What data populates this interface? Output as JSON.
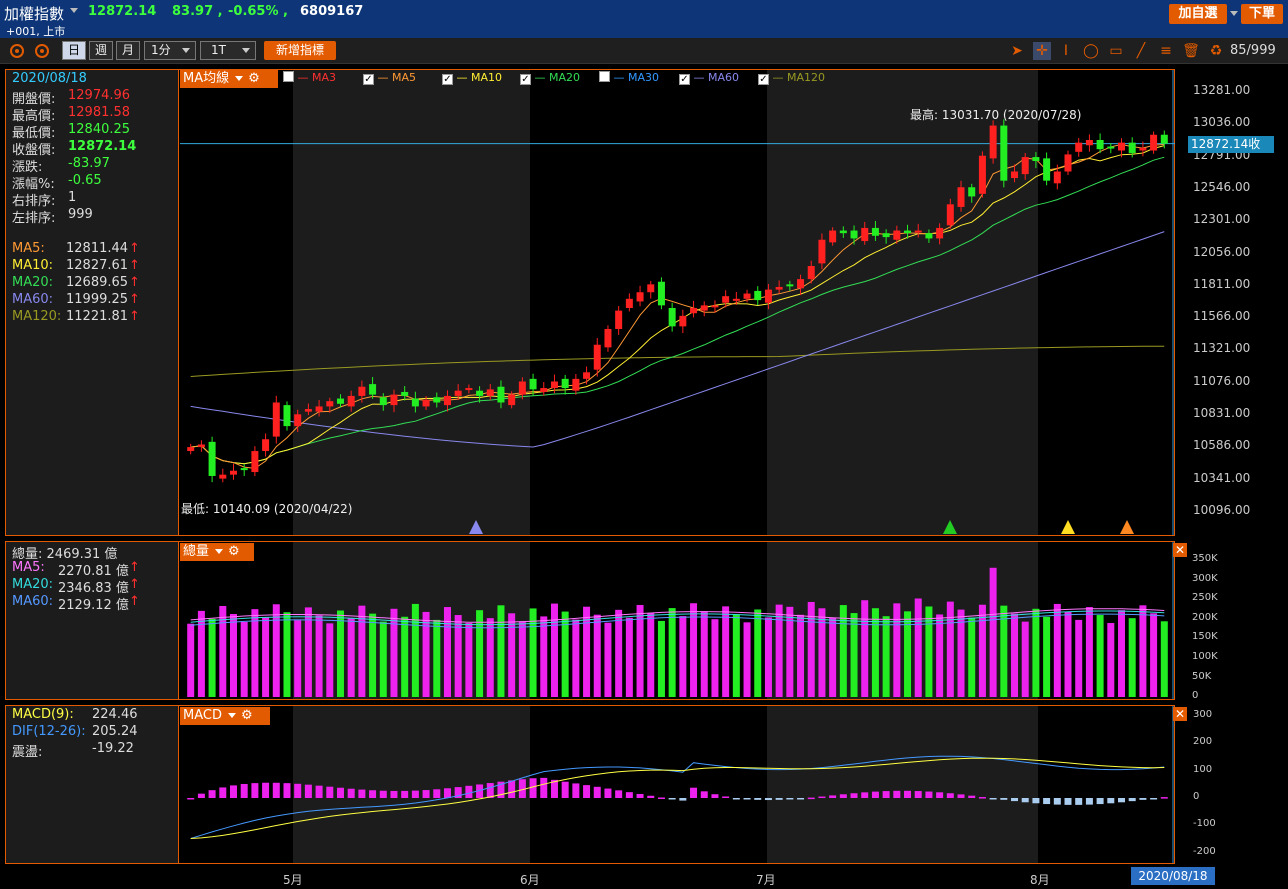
{
  "header": {
    "name": "加權指數",
    "price": "12872.14",
    "change": "83.97",
    "change_pct": "-0.65%",
    "volume": "6809167",
    "code": "+001, 上市",
    "watch_label": "加自選",
    "order_label": "下單",
    "sep1": ",",
    "sep2": ","
  },
  "toolbar": {
    "periods": [
      "日",
      "週",
      "月",
      "1分",
      "1T"
    ],
    "add_indicator": "新增指標",
    "page_count": "85/999"
  },
  "price_panel": {
    "date": "2020/08/18",
    "rows": [
      {
        "label": "開盤價:",
        "value": "12974.96",
        "color": "#ff3030"
      },
      {
        "label": "最高價:",
        "value": "12981.58",
        "color": "#ff3030"
      },
      {
        "label": "最低價:",
        "value": "12840.25",
        "color": "#3dff3d"
      },
      {
        "label": "收盤價:",
        "value": "12872.14",
        "color": "#3dff3d"
      },
      {
        "label": "漲跌:",
        "value": "-83.97",
        "color": "#3dff3d"
      },
      {
        "label": "漲幅%:",
        "value": "-0.65",
        "color": "#3dff3d"
      },
      {
        "label": "右排序:",
        "value": "1",
        "color": "#ddd"
      },
      {
        "label": "左排序:",
        "value": "999",
        "color": "#ddd"
      }
    ],
    "ma_rows": [
      {
        "label": "MA5:",
        "value": "12811.44",
        "color": "#ff9933"
      },
      {
        "label": "MA10:",
        "value": "12827.61",
        "color": "#ffee33"
      },
      {
        "label": "MA20:",
        "value": "12689.65",
        "color": "#33dd55"
      },
      {
        "label": "MA60:",
        "value": "11999.25",
        "color": "#8888ee"
      },
      {
        "label": "MA120:",
        "value": "11221.81",
        "color": "#999922"
      }
    ],
    "up_arrow": "↑",
    "tag": "MA均線",
    "legend": [
      {
        "label": "MA3",
        "checked": false,
        "color": "#ff3030"
      },
      {
        "label": "MA5",
        "checked": true,
        "color": "#ff9933"
      },
      {
        "label": "MA10",
        "checked": true,
        "color": "#ffee33"
      },
      {
        "label": "MA20",
        "checked": true,
        "color": "#33dd55"
      },
      {
        "label": "MA30",
        "checked": false,
        "color": "#3399ff"
      },
      {
        "label": "MA60",
        "checked": true,
        "color": "#8888ee"
      },
      {
        "label": "MA120",
        "checked": true,
        "color": "#999922"
      }
    ],
    "high_note": "最高: 13031.70 (2020/07/28)",
    "low_note": "最低: 10140.09 (2020/04/22)",
    "y_ticks": [
      "13281.00",
      "13036.00",
      "12791.00",
      "12546.00",
      "12301.00",
      "12056.00",
      "11811.00",
      "11566.00",
      "11321.00",
      "11076.00",
      "10831.00",
      "10586.00",
      "10341.00",
      "10096.00"
    ],
    "close_label": "12872.14收"
  },
  "volume_panel": {
    "title": "總量:",
    "total": "2469.31 億",
    "ma_rows": [
      {
        "label": "MA5:",
        "value": "2270.81 億",
        "color": "#ff77ff"
      },
      {
        "label": "MA20:",
        "value": "2346.83 億",
        "color": "#33dddd"
      },
      {
        "label": "MA60:",
        "value": "2129.12 億",
        "color": "#5599ff"
      }
    ],
    "tag": "總量",
    "y_ticks": [
      "350K",
      "300K",
      "250K",
      "200K",
      "150K",
      "100K",
      "50K",
      "0"
    ]
  },
  "macd_panel": {
    "rows": [
      {
        "label": "MACD(9):",
        "value": "224.46",
        "color": "#ffff44"
      },
      {
        "label": "DIF(12-26):",
        "value": "205.24",
        "color": "#4499ff"
      },
      {
        "label": "震盪:",
        "value": "-19.22",
        "color": "#ddd"
      }
    ],
    "tag": "MACD",
    "y_ticks": [
      "300",
      "200",
      "100",
      "0",
      "-100",
      "-200"
    ]
  },
  "date_axis": {
    "months": [
      "5月",
      "6月",
      "7月",
      "8月"
    ],
    "current": "2020/08/18"
  },
  "chart_data": {
    "type": "candlestick",
    "series_close": [
      10560,
      10580,
      10340,
      10350,
      10380,
      10390,
      10530,
      10620,
      10900,
      10720,
      10810,
      10850,
      10870,
      10910,
      10890,
      10950,
      11020,
      10960,
      10880,
      10960,
      10950,
      10870,
      10920,
      10900,
      10950,
      10990,
      11010,
      10950,
      11000,
      10900,
      10960,
      11060,
      11000,
      11010,
      11060,
      11010,
      11080,
      11130,
      11340,
      11460,
      11600,
      11690,
      11740,
      11800,
      11640,
      11480,
      11560,
      11620,
      11640,
      11640,
      11710,
      11690,
      11730,
      11680,
      11760,
      11780,
      11790,
      11840,
      11940,
      12140,
      12210,
      12190,
      12150,
      12230,
      12170,
      12160,
      12210,
      12190,
      12210,
      12150,
      12230,
      12410,
      12540,
      12470,
      12780,
      13010,
      12590,
      12660,
      12770,
      12740,
      12590,
      12660,
      12790,
      12880,
      12900,
      12830,
      12840,
      12880,
      12800,
      12840,
      12940,
      12872
    ],
    "ylim": [
      10096,
      13281
    ]
  }
}
